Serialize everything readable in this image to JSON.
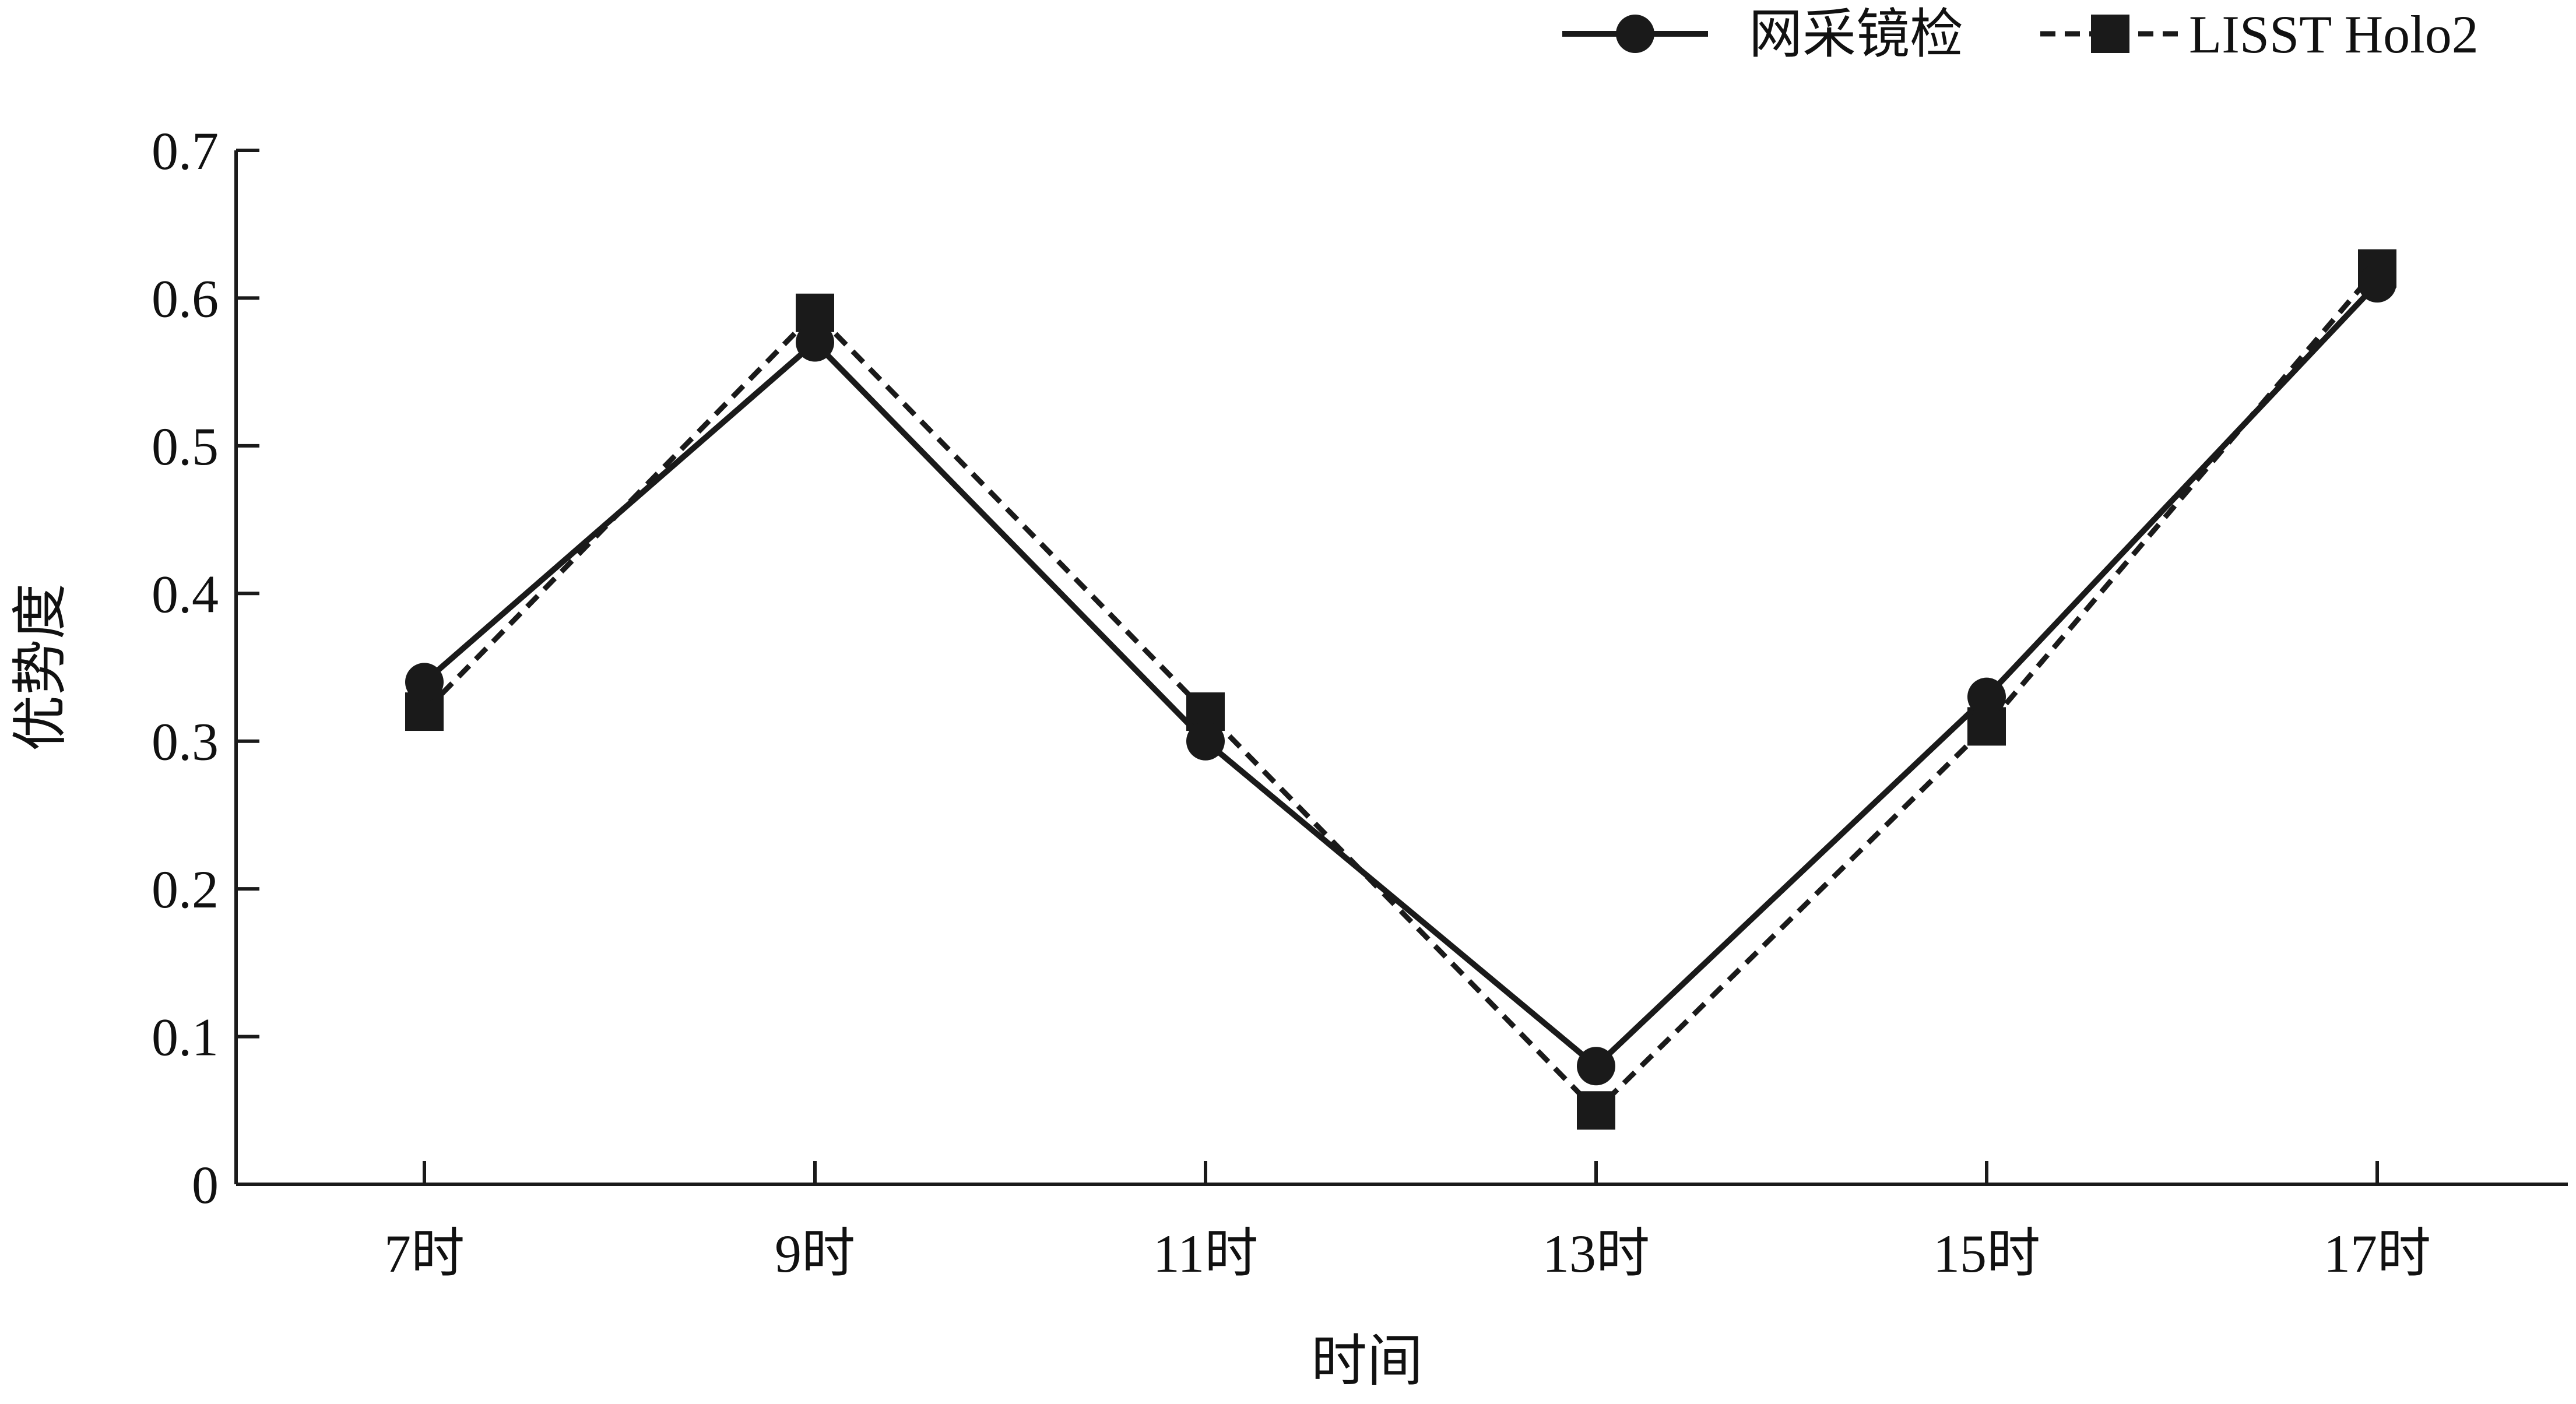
{
  "chart_data": {
    "type": "line",
    "title": "",
    "xlabel": "时间",
    "ylabel": "优势度",
    "categories": [
      "7时",
      "9时",
      "11时",
      "13时",
      "15时",
      "17时"
    ],
    "ylim": [
      0,
      0.7
    ],
    "yticks": [
      "0",
      "0.1",
      "0.2",
      "0.3",
      "0.4",
      "0.5",
      "0.6",
      "0.7"
    ],
    "grid": false,
    "legend_position": "top-right",
    "series": [
      {
        "name": "网采镜检",
        "values": [
          0.34,
          0.57,
          0.3,
          0.08,
          0.33,
          0.61
        ],
        "line_style": "solid",
        "marker": "circle",
        "color": "#1a1a1a"
      },
      {
        "name": "LISST Holo2",
        "values": [
          0.32,
          0.59,
          0.32,
          0.05,
          0.31,
          0.62
        ],
        "line_style": "dashed",
        "marker": "square",
        "color": "#1a1a1a"
      }
    ]
  }
}
